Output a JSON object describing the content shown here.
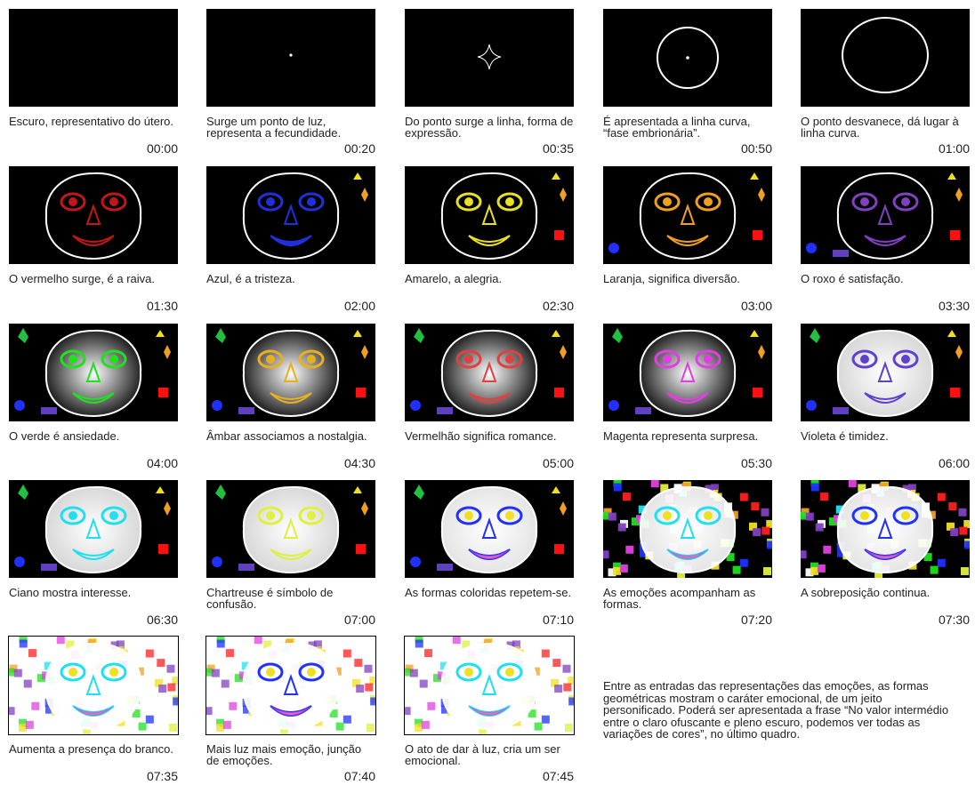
{
  "frames": [
    {
      "caption": "Escuro, representativo do útero.",
      "time": "00:00",
      "bg": "#000000"
    },
    {
      "caption": "Surge um ponto de luz, representa a fecundidade.",
      "time": "00:20",
      "bg": "#000000"
    },
    {
      "caption": "Do ponto surge a linha, forma de expressão.",
      "time": "00:35",
      "bg": "#000000"
    },
    {
      "caption": "É apresentada a linha curva, “fase embrionária”.",
      "time": "00:50",
      "bg": "#000000"
    },
    {
      "caption": "O ponto desvanece, dá lugar à linha curva.",
      "time": "01:00",
      "bg": "#000000"
    },
    {
      "caption": "O vermelho surge, é a raiva.",
      "time": "01:30",
      "bg": "#000000"
    },
    {
      "caption": "Azul, é a tristeza.",
      "time": "02:00",
      "bg": "#000000"
    },
    {
      "caption": "Amarelo, a alegria.",
      "time": "02:30",
      "bg": "#000000"
    },
    {
      "caption": "Laranja, significa diversão.",
      "time": "03:00",
      "bg": "#000000"
    },
    {
      "caption": "O roxo é satisfação.",
      "time": "03:30",
      "bg": "#000000"
    },
    {
      "caption": "O verde é ansiedade.",
      "time": "04:00",
      "bg": "#000000"
    },
    {
      "caption": "Âmbar associamos a nostalgia.",
      "time": "04:30",
      "bg": "#000000"
    },
    {
      "caption": "Vermelhão significa romance.",
      "time": "05:00",
      "bg": "#000000"
    },
    {
      "caption": "Magenta representa surpresa.",
      "time": "05:30",
      "bg": "#000000"
    },
    {
      "caption": "Violeta é timidez.",
      "time": "06:00",
      "bg": "#000000"
    },
    {
      "caption": "Ciano mostra interesse.",
      "time": "06:30",
      "bg": "#000000"
    },
    {
      "caption": "Chartreuse é símbolo de confusão.",
      "time": "07:00",
      "bg": "#000000"
    },
    {
      "caption": "As formas coloridas repetem-se.",
      "time": "07:10",
      "bg": "#000000"
    },
    {
      "caption": "As emoções acompanham as formas.",
      "time": "07:20",
      "bg": "#000000"
    },
    {
      "caption": "A sobreposição continua.",
      "time": "07:30",
      "bg": "#000000"
    },
    {
      "caption": "Aumenta a presença do branco.",
      "time": "07:35",
      "bg": "#ffffff"
    },
    {
      "caption": "Mais luz mais emoção, junção de emoções.",
      "time": "07:40",
      "bg": "#ffffff"
    },
    {
      "caption": "O ato de dar à luz, cria um ser emocional.",
      "time": "07:45",
      "bg": "#ffffff"
    }
  ],
  "note": "Entre as entradas das representações das emoções, as formas geométricas mostram o caráter emocional, de um jeito personificado. Poderá ser apresentada a frase “No valor intermédio entre o claro ofuscante e pleno escuro, podemos ver todas as variações de cores”, no último quadro.",
  "colors": {
    "red": "#c01818",
    "blue": "#2030d8",
    "yellow": "#e8e020",
    "orange": "#f0a020",
    "purple": "#8040c0",
    "green": "#20e020",
    "amber": "#e8b020",
    "vermilion": "#e04040",
    "magenta": "#e040e0",
    "violet": "#6040d0",
    "cyan": "#20e0f0",
    "chartreuse": "#e0f040"
  }
}
